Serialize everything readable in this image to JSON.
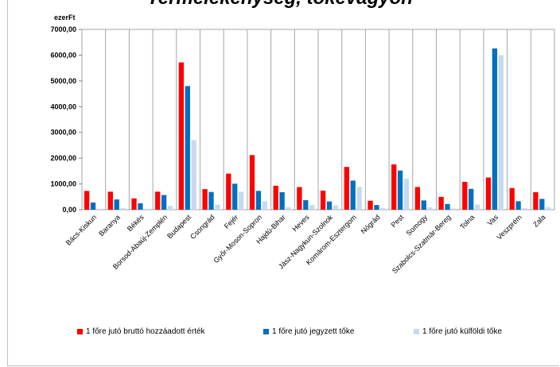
{
  "chart_data": {
    "type": "bar",
    "title": "Termelékenység, tőkevágyon",
    "ylabel": "ezerFt",
    "ylim": [
      0,
      7000
    ],
    "yticks": [
      "0,00",
      "1000,00",
      "2000,00",
      "3000,00",
      "4000,00",
      "5000,00",
      "6000,00",
      "7000,00"
    ],
    "grid": "vertical",
    "legend_position": "bottom",
    "categories": [
      "Bács-Kiskun",
      "Baranya",
      "Békés",
      "Borsod-Abaúj-Zemplén",
      "Budapest",
      "Csongrád",
      "Fejér",
      "Győr-Moson-Sopron",
      "Hajdú-Bihar",
      "Heves",
      "Jász-Nagykun-Szolnok",
      "Komárom-Esztergom",
      "Nógrád",
      "Pest",
      "Somogy",
      "Szabolcs-Szatmár-Bereg",
      "Tolna",
      "Vas",
      "Veszprém",
      "Zala"
    ],
    "series": [
      {
        "name": "1 főre jutó bruttó hozzáadott érték",
        "color": "#ff0000",
        "values": [
          730,
          700,
          440,
          700,
          5720,
          800,
          1400,
          2120,
          930,
          880,
          740,
          1660,
          350,
          1760,
          880,
          500,
          1080,
          1250,
          840,
          680
        ]
      },
      {
        "name": "1 főre jutó jegyzett tőke",
        "color": "#0070c0",
        "values": [
          280,
          400,
          250,
          570,
          4800,
          690,
          1010,
          730,
          680,
          370,
          320,
          1130,
          180,
          1520,
          360,
          220,
          810,
          6260,
          330,
          420
        ]
      },
      {
        "name": "1 főre jutó külföldi tőke",
        "color": "#c6d9f1",
        "values": [
          40,
          60,
          40,
          150,
          2700,
          200,
          700,
          330,
          100,
          180,
          170,
          880,
          60,
          1200,
          90,
          50,
          200,
          6000,
          60,
          100
        ]
      }
    ]
  }
}
